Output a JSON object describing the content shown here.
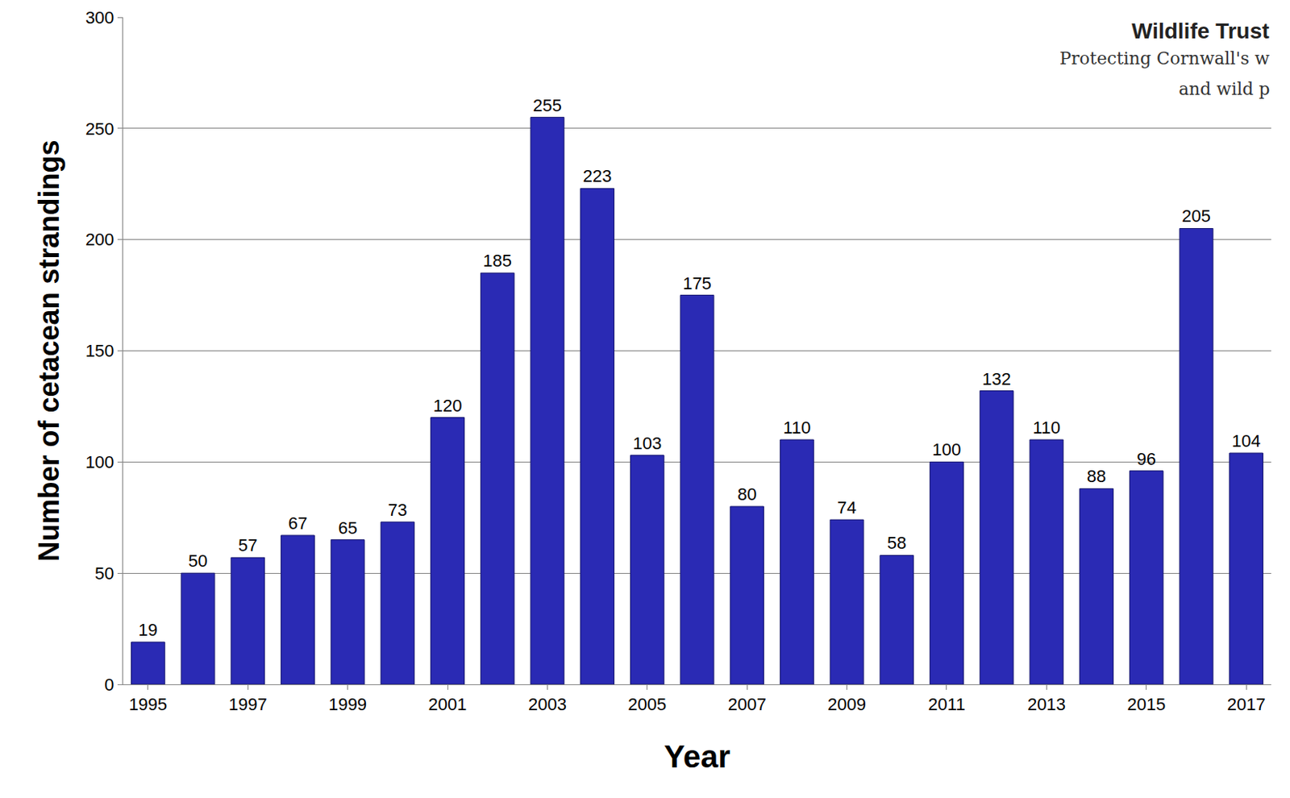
{
  "chart_data": {
    "type": "bar",
    "x": [
      1995,
      1996,
      1997,
      1998,
      1999,
      2000,
      2001,
      2002,
      2003,
      2004,
      2005,
      2006,
      2007,
      2008,
      2009,
      2010,
      2011,
      2012,
      2013,
      2014,
      2015,
      2016,
      2017
    ],
    "values": [
      19,
      50,
      57,
      67,
      65,
      73,
      120,
      185,
      255,
      223,
      103,
      175,
      80,
      110,
      74,
      58,
      100,
      132,
      110,
      88,
      96,
      205,
      104
    ],
    "color": "#2a2ab4",
    "x_label": "Year",
    "y_label": "Number of cetacean strandings",
    "xlim": [
      1994.5,
      2017.5
    ],
    "xticks": [
      1995,
      1997,
      1999,
      2001,
      2003,
      2005,
      2007,
      2009,
      2011,
      2013,
      2015,
      2017
    ],
    "ylim": [
      0,
      300
    ],
    "yticks": [
      0,
      50,
      100,
      150,
      200,
      250,
      300
    ],
    "grid": true,
    "data_labels": true,
    "annotations": [
      "Wildlife Trust",
      "Protecting Cornwall's w",
      "and wild p"
    ]
  }
}
